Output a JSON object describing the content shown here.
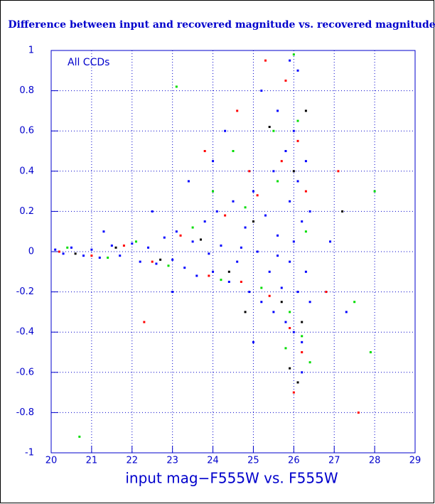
{
  "chart_data": {
    "type": "scatter",
    "title": "Difference between input and recovered magnitude vs. recovered magnitude",
    "annotation": "All CCDs",
    "x_label": "input mag−F555W vs. F555W",
    "xlim": [
      20,
      29
    ],
    "xticks": [
      20,
      21,
      22,
      23,
      24,
      25,
      26,
      27,
      28,
      29
    ],
    "ylim": [
      -1,
      1
    ],
    "yticks": [
      -1,
      -0.8,
      -0.6,
      -0.4,
      -0.2,
      0,
      0.2,
      0.4,
      0.6,
      0.8,
      1
    ],
    "grid": true,
    "series": [
      {
        "color": "#000000",
        "x": [
          20.6,
          21.6,
          22.7,
          23.7,
          24.4,
          25.0,
          25.7,
          26.0,
          26.2,
          26.3,
          25.9,
          25.4,
          26.1,
          24.8,
          27.2
        ],
        "values": [
          -0.01,
          0.02,
          -0.04,
          0.06,
          -0.1,
          0.15,
          -0.25,
          0.4,
          -0.35,
          0.7,
          -0.58,
          0.62,
          -0.65,
          -0.3,
          0.2
        ]
      },
      {
        "color": "#ff0000",
        "x": [
          20.2,
          21.0,
          21.8,
          22.5,
          23.2,
          23.9,
          24.3,
          24.7,
          25.1,
          25.4,
          25.7,
          25.9,
          26.1,
          26.2,
          26.3,
          25.8,
          24.6,
          23.8,
          26.0,
          27.1,
          27.6,
          22.3,
          26.8,
          25.3,
          24.9
        ],
        "values": [
          0.0,
          -0.02,
          0.03,
          -0.05,
          0.08,
          -0.12,
          0.18,
          -0.15,
          0.28,
          -0.22,
          0.45,
          -0.38,
          0.55,
          -0.5,
          0.3,
          0.85,
          0.7,
          0.5,
          -0.7,
          0.4,
          -0.8,
          -0.35,
          -0.2,
          0.95,
          0.4
        ]
      },
      {
        "color": "#00dd00",
        "x": [
          20.4,
          21.4,
          22.1,
          22.9,
          23.5,
          24.2,
          24.8,
          25.2,
          25.6,
          25.9,
          26.1,
          26.2,
          26.3,
          26.0,
          25.5,
          24.5,
          23.1,
          26.4,
          27.5,
          28.0,
          20.7,
          27.9,
          25.8,
          24.0
        ],
        "values": [
          0.02,
          -0.03,
          0.05,
          -0.07,
          0.12,
          -0.14,
          0.22,
          -0.18,
          0.35,
          -0.3,
          0.65,
          -0.42,
          0.1,
          0.98,
          0.6,
          0.5,
          0.82,
          -0.55,
          -0.25,
          0.3,
          -0.92,
          -0.5,
          -0.48,
          0.3
        ]
      },
      {
        "color": "#0000ff",
        "x": [
          20.1,
          20.3,
          20.5,
          20.8,
          21.0,
          21.2,
          21.5,
          21.7,
          22.0,
          22.2,
          22.4,
          22.6,
          22.8,
          23.0,
          23.1,
          23.3,
          23.5,
          23.6,
          23.8,
          24.0,
          24.1,
          24.2,
          24.4,
          24.5,
          24.6,
          24.8,
          24.9,
          25.0,
          25.1,
          25.2,
          25.3,
          25.4,
          25.5,
          25.5,
          25.6,
          25.7,
          25.8,
          25.8,
          25.9,
          25.9,
          26.0,
          26.0,
          26.1,
          26.1,
          26.2,
          26.2,
          26.3,
          26.3,
          26.0,
          25.6,
          24.7,
          23.9,
          24.3,
          23.4,
          25.2,
          26.1,
          25.6,
          26.4,
          26.4,
          27.3,
          26.9,
          22.5,
          21.3,
          23.0,
          24.0,
          25.0,
          26.2,
          25.9
        ],
        "values": [
          0.01,
          -0.01,
          0.02,
          -0.02,
          0.01,
          -0.03,
          0.03,
          -0.02,
          0.04,
          -0.05,
          0.02,
          -0.06,
          0.07,
          -0.04,
          0.1,
          -0.08,
          0.05,
          -0.12,
          0.15,
          -0.1,
          0.2,
          0.03,
          -0.15,
          0.25,
          -0.05,
          0.12,
          -0.2,
          0.3,
          0.0,
          -0.25,
          0.18,
          -0.1,
          0.4,
          -0.3,
          0.08,
          -0.18,
          0.5,
          -0.35,
          0.25,
          -0.05,
          0.6,
          -0.4,
          0.35,
          -0.2,
          0.15,
          -0.45,
          0.45,
          -0.1,
          0.05,
          -0.02,
          0.02,
          -0.01,
          0.6,
          0.35,
          0.8,
          0.9,
          0.7,
          -0.25,
          0.2,
          -0.3,
          0.05,
          0.2,
          0.1,
          -0.2,
          0.45,
          -0.45,
          -0.6,
          0.95
        ]
      }
    ]
  }
}
